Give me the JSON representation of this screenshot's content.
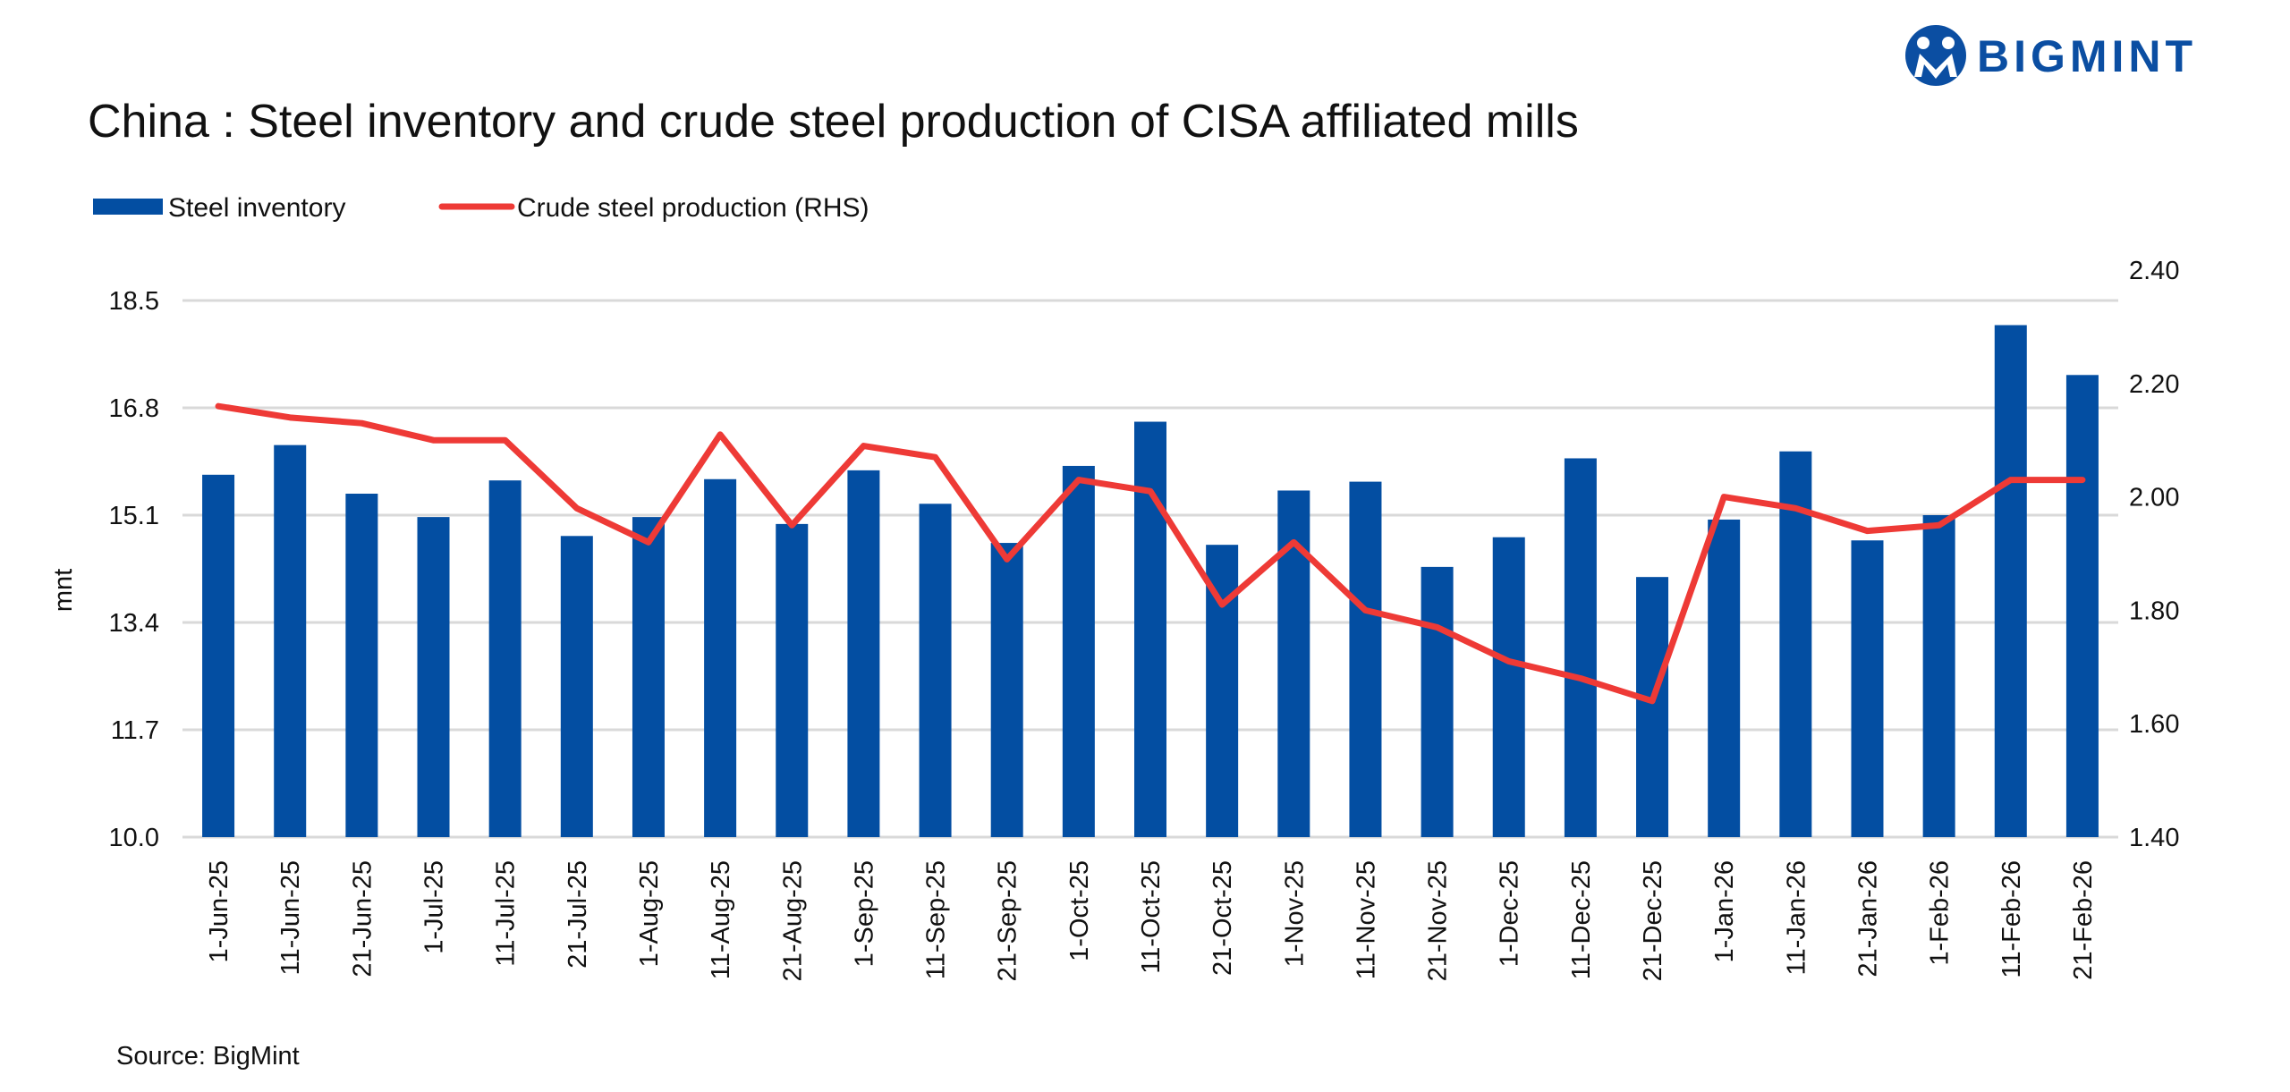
{
  "logo": {
    "text": "BIGMINT",
    "color": "#0b4ea2"
  },
  "source": "Source: BigMint",
  "chart_data": {
    "type": "bar+line",
    "title": "China : Steel inventory and crude steel production of CISA affiliated mills",
    "ylabel": "mnt",
    "ylabel_right": "",
    "ylim": [
      10.0,
      18.5
    ],
    "ylim_right": [
      1.4,
      2.4
    ],
    "yticks": [
      "10.0",
      "11.7",
      "13.4",
      "15.1",
      "16.8",
      "18.5"
    ],
    "yticks_right": [
      "1.40",
      "1.60",
      "1.80",
      "2.00",
      "2.20",
      "2.40"
    ],
    "grid": true,
    "legend_position": "top-left",
    "categories": [
      "1-Jun-25",
      "11-Jun-25",
      "21-Jun-25",
      "1-Jul-25",
      "11-Jul-25",
      "21-Jul-25",
      "1-Aug-25",
      "11-Aug-25",
      "21-Aug-25",
      "1-Sep-25",
      "11-Sep-25",
      "21-Sep-25",
      "1-Oct-25",
      "11-Oct-25",
      "21-Oct-25",
      "1-Nov-25",
      "11-Nov-25",
      "21-Nov-25",
      "1-Dec-25",
      "11-Dec-25",
      "21-Dec-25",
      "1-Jan-26",
      "11-Jan-26",
      "21-Jan-26",
      "1-Feb-26",
      "11-Feb-26",
      "21-Feb-26"
    ],
    "series": [
      {
        "name": "Steel inventory",
        "type": "bar",
        "axis": "left",
        "color": "#034ea2",
        "values": [
          15.74,
          16.21,
          15.44,
          15.07,
          15.65,
          14.77,
          15.07,
          15.67,
          14.96,
          15.81,
          15.28,
          14.66,
          15.88,
          16.58,
          14.63,
          15.49,
          15.63,
          14.28,
          14.75,
          16.0,
          14.12,
          15.03,
          16.11,
          14.7,
          15.1,
          18.11,
          17.32
        ]
      },
      {
        "name": "Crude steel production (RHS)",
        "type": "line",
        "axis": "right",
        "color": "#ee3a36",
        "values": [
          2.16,
          2.14,
          2.13,
          2.1,
          2.1,
          1.98,
          1.92,
          2.11,
          1.95,
          2.09,
          2.07,
          1.89,
          2.03,
          2.01,
          1.81,
          1.92,
          1.8,
          1.77,
          1.71,
          1.68,
          1.64,
          2.0,
          1.98,
          1.94,
          1.95,
          2.03,
          2.03
        ]
      }
    ]
  }
}
